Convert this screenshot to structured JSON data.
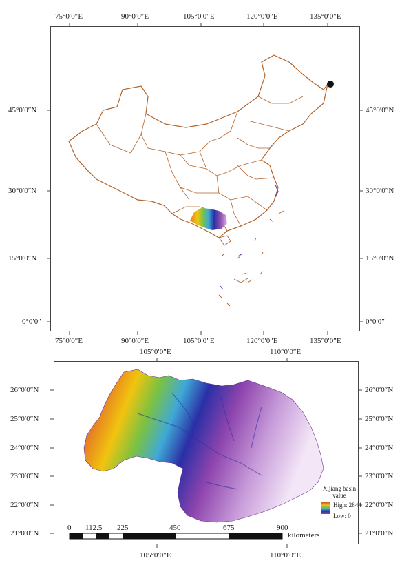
{
  "top_map": {
    "x_ticks": [
      "75°0′0″E",
      "90°0′0″E",
      "105°0′0″E",
      "120°0′0″E",
      "135°0′0″E"
    ],
    "y_ticks": [
      "45°0′0″N",
      "30°0′0″N",
      "15°0′0″N",
      "0°0′0″"
    ],
    "colors": {
      "border": "#b0622a",
      "study_area": "#8a3fbf"
    }
  },
  "bottom_map": {
    "x_ticks": [
      "105°0′0″E",
      "110°0′0″E"
    ],
    "y_ticks": [
      "26°0′0″N",
      "25°0′0″N",
      "24°0′0″N",
      "23°0′0″N",
      "22°0′0″N",
      "21°0′0″N"
    ],
    "legend": {
      "title": "Xijiang basin value",
      "high": "High: 2844",
      "low": "Low: 0",
      "gradient": [
        "#c0392b",
        "#e67e22",
        "#f1c40f",
        "#7bc242",
        "#3fa9d6",
        "#2b2fa6",
        "#8e44ad",
        "#f3e6f7"
      ]
    },
    "scale_bar": {
      "labels": [
        "0",
        "112.5",
        "225",
        "450",
        "675",
        "900"
      ],
      "unit": "kilometers"
    }
  }
}
